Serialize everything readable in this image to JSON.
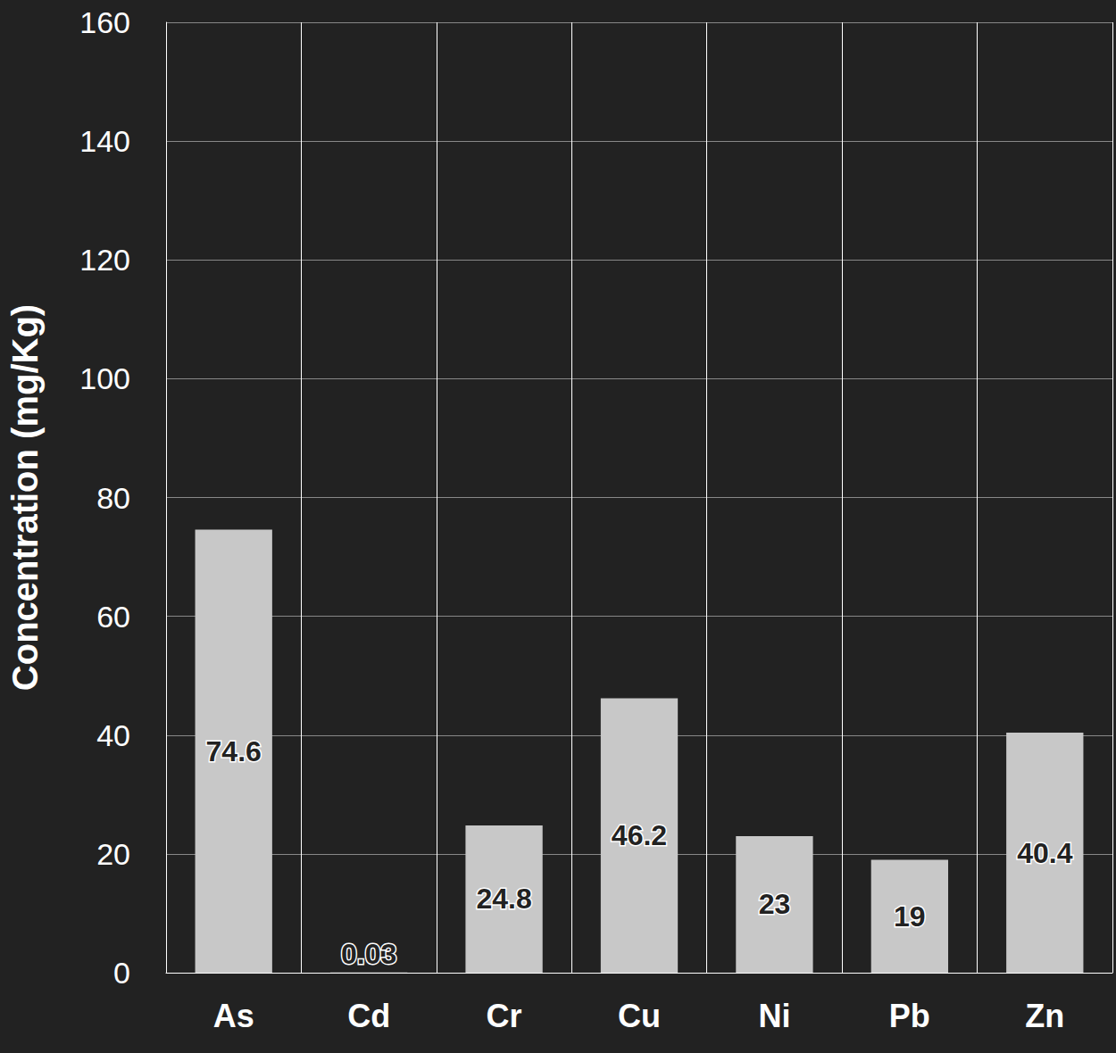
{
  "chart_data": {
    "type": "bar",
    "y_label": "Concentration (mg/Kg)",
    "categories": [
      "As",
      "Cd",
      "Cr",
      "Cu",
      "Ni",
      "Pb",
      "Zn"
    ],
    "values": [
      74.6,
      0.03,
      24.8,
      46.2,
      23,
      19,
      40.4
    ],
    "color": "#c8c8c8",
    "ylim": [
      0,
      160
    ],
    "yticks": [
      0,
      20,
      40,
      60,
      80,
      100,
      120,
      140,
      160
    ],
    "grid": true,
    "data_labels": true
  }
}
